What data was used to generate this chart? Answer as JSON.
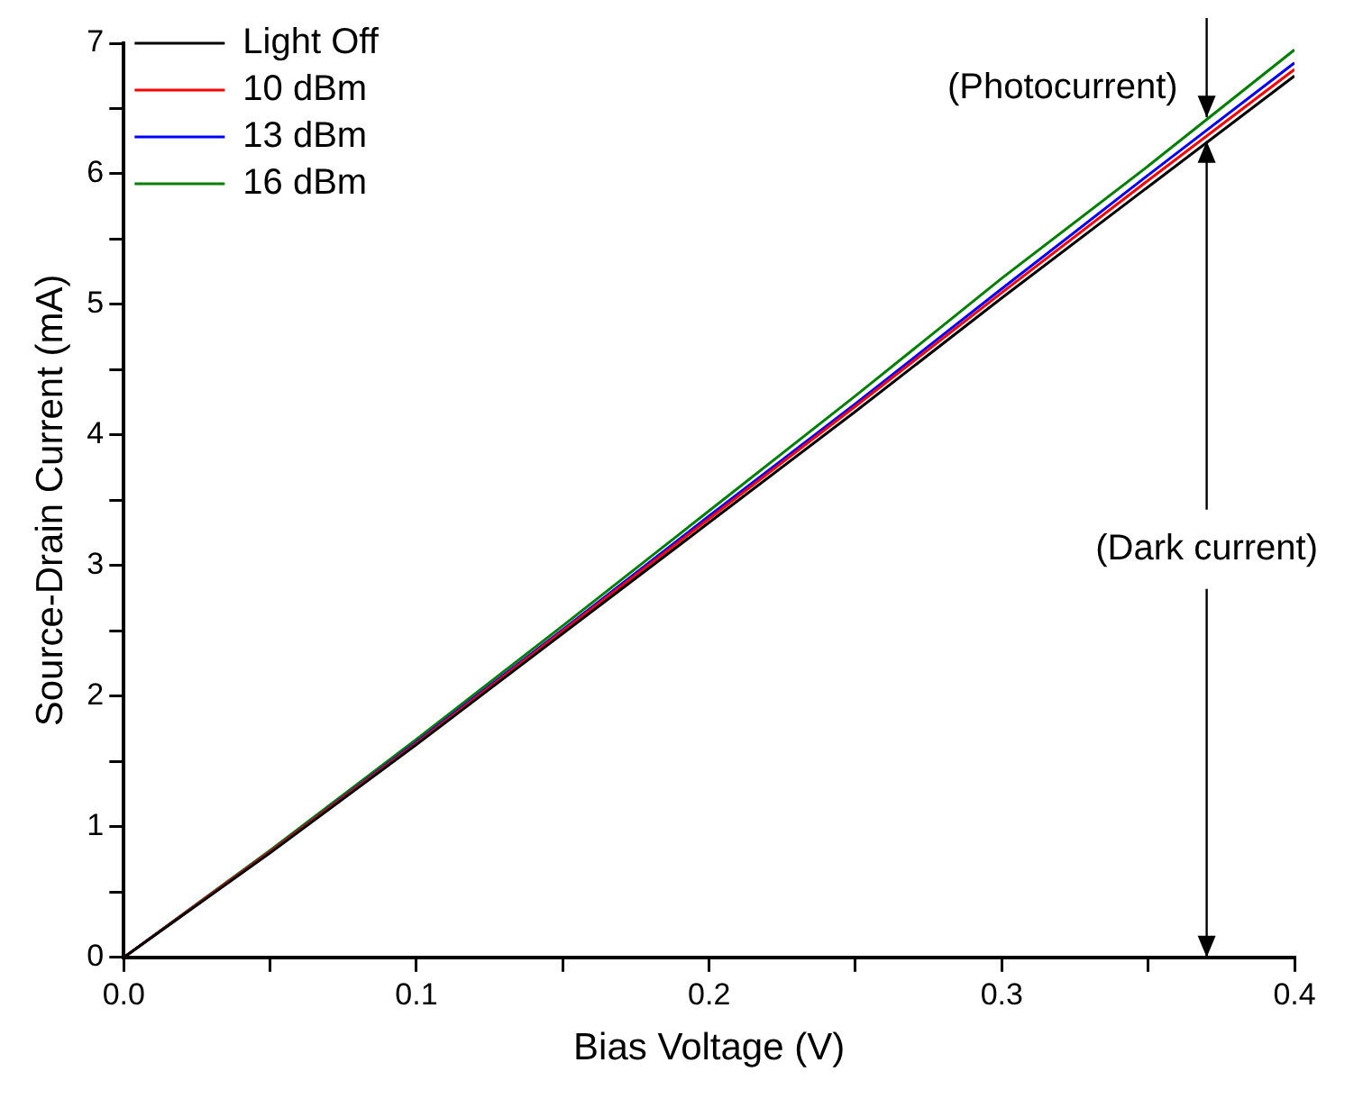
{
  "chart_data": {
    "type": "line",
    "xlabel": "Bias Voltage (V)",
    "ylabel": "Source-Drain Current (mA)",
    "x": [
      0,
      0.05,
      0.1,
      0.15,
      0.2,
      0.25,
      0.3,
      0.35,
      0.4
    ],
    "series": [
      {
        "name": "Light Off",
        "color": "#000000",
        "values": [
          0,
          0.8,
          1.63,
          2.48,
          3.33,
          4.18,
          5.05,
          5.9,
          6.75
        ]
      },
      {
        "name": "10 dBm",
        "color": "#ff0000",
        "values": [
          0,
          0.81,
          1.64,
          2.5,
          3.36,
          4.22,
          5.09,
          5.95,
          6.8
        ]
      },
      {
        "name": "13 dBm",
        "color": "#0000ff",
        "values": [
          0,
          0.81,
          1.65,
          2.51,
          3.38,
          4.24,
          5.12,
          5.99,
          6.85
        ]
      },
      {
        "name": "16 dBm",
        "color": "#008000",
        "values": [
          0,
          0.82,
          1.67,
          2.54,
          3.42,
          4.3,
          5.2,
          6.06,
          6.95
        ]
      }
    ],
    "xlim": [
      0,
      0.4
    ],
    "xticks": [
      "0.0",
      {
        "value": 0.05,
        "label": null
      },
      {
        "value": 0.1,
        "label": "0.1"
      },
      {
        "value": 0.15,
        "label": null
      },
      {
        "value": 0.2,
        "label": "0.2"
      },
      {
        "value": 0.25,
        "label": null
      },
      {
        "value": 0.3,
        "label": "0.3"
      },
      {
        "value": 0.35,
        "label": null
      },
      {
        "value": 0.4,
        "label": "0.4"
      }
    ],
    "ylim": [
      0,
      7
    ],
    "yticks": [
      0,
      {
        "value": 0.5,
        "label": null
      },
      1,
      {
        "value": 1.5,
        "label": null
      },
      2,
      {
        "value": 2.5,
        "label": null
      },
      3,
      {
        "value": 3.5,
        "label": null
      },
      4,
      {
        "value": 4.5,
        "label": null
      },
      5,
      {
        "value": 5.5,
        "label": null
      },
      6,
      {
        "value": 6.5,
        "label": null
      },
      7
    ],
    "annotations": [
      {
        "text": "(Photocurrent)",
        "x": 0.37,
        "y": 6.35
      },
      {
        "text": "(Dark current)",
        "x": 0.37,
        "y": 6.25
      }
    ],
    "legend": "top left",
    "grid": false
  }
}
